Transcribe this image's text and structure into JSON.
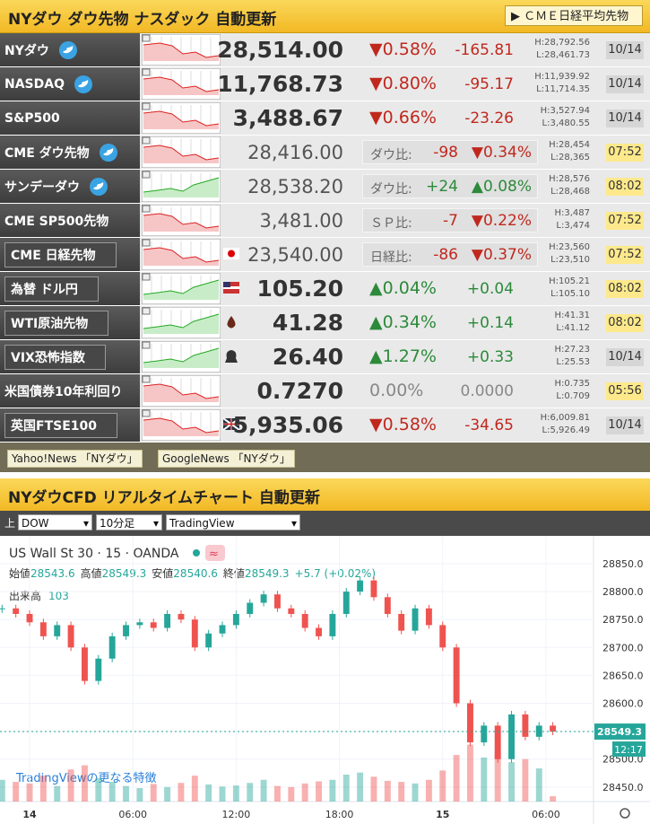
{
  "header": {
    "title": "NYダウ ダウ先物 ナスダック 自動更新",
    "button": "ＣＭＥ日経平均先物"
  },
  "rows": [
    {
      "name": "NYダウ",
      "twitter": true,
      "price": "28,514.00",
      "pct": "▼0.58%",
      "change": "-165.81",
      "high": "H:28,792.56",
      "low": "L:28,461.73",
      "time": "10/14"
    },
    {
      "name": "NASDAQ",
      "twitter": true,
      "price": "11,768.73",
      "pct": "▼0.80%",
      "change": "-95.17",
      "high": "H:11,939.92",
      "low": "L:11,714.35",
      "time": "10/14"
    },
    {
      "name": "S&P500",
      "price": "3,488.67",
      "pct": "▼0.66%",
      "change": "-23.26",
      "high": "H:3,527.94",
      "low": "L:3,480.55",
      "time": "10/14"
    },
    {
      "name": "CME ダウ先物",
      "twitter": true,
      "price": "28,416.00",
      "compare": "ダウ比:",
      "change": "-98",
      "pct": "▼0.34%",
      "high": "H:28,454",
      "low": "L:28,365",
      "time": "07:52"
    },
    {
      "name": "サンデーダウ",
      "twitter": true,
      "price": "28,538.20",
      "compare": "ダウ比:",
      "change": "+24",
      "pct": "▲0.08%",
      "high": "H:28,576",
      "low": "L:28,468",
      "time": "08:02"
    },
    {
      "name": "CME SP500先物",
      "price": "3,481.00",
      "compare": "ＳＰ比:",
      "change": "-7",
      "pct": "▼0.22%",
      "high": "H:3,487",
      "low": "L:3,474",
      "time": "07:52"
    },
    {
      "name": "CME 日経先物",
      "boxed": true,
      "icon": "jp",
      "price": "23,540.00",
      "compare": "日経比:",
      "change": "-86",
      "pct": "▼0.37%",
      "high": "H:23,560",
      "low": "L:23,510",
      "time": "07:52"
    },
    {
      "name": "為替 ドル円",
      "boxed": true,
      "icon": "us",
      "price": "105.20",
      "pct": "▲0.04%",
      "change": "+0.04",
      "high": "H:105.21",
      "low": "L:105.10",
      "time": "08:02"
    },
    {
      "name": "WTI原油先物",
      "boxed": true,
      "icon": "oil",
      "price": "41.28",
      "pct": "▲0.34%",
      "change": "+0.14",
      "high": "H:41.31",
      "low": "L:41.12",
      "time": "08:02"
    },
    {
      "name": "VIX恐怖指数",
      "boxed": true,
      "icon": "vix",
      "price": "26.40",
      "pct": "▲1.27%",
      "change": "+0.33",
      "high": "H:27.23",
      "low": "L:25.53",
      "time": "10/14"
    },
    {
      "name": "米国債券10年利回り",
      "price": "0.7270",
      "pct": "0.00%",
      "change": "0.0000",
      "high": "H:0.735",
      "low": "L:0.709",
      "time": "05:56"
    },
    {
      "name": "英国FTSE100",
      "boxed": true,
      "icon": "uk",
      "price": "5,935.06",
      "pct": "▼0.58%",
      "change": "-34.65",
      "high": "H:6,009.81",
      "low": "L:5,926.49",
      "time": "10/14"
    }
  ],
  "links": [
    "Yahoo!News 「NYダウ」",
    "GoogleNews 「NYダウ」"
  ],
  "chart_header": {
    "title": "NYダウCFD リアルタイムチャート 自動更新"
  },
  "controls": {
    "label": "上",
    "selects": [
      "DOW",
      "10分足",
      "TradingView"
    ]
  },
  "chart_data": {
    "type": "candlestick",
    "title": "US Wall St 30 · 15 · OANDA",
    "ohlc": [
      {
        "label": "始値",
        "value": "28543.6"
      },
      {
        "label": "高値",
        "value": "28549.3"
      },
      {
        "label": "安値",
        "value": "28540.6"
      },
      {
        "label": "終値",
        "value": "28549.3"
      }
    ],
    "change": "+5.7 (+0.02%)",
    "volume_label": "出来高",
    "countdown": "12:17",
    "promo": "TradingViewの更なる特徴",
    "x": [
      -1.6,
      -0.8,
      0,
      0.8,
      1.6,
      2.4,
      3.2,
      4,
      4.8,
      5.6,
      6.4,
      7.2,
      8,
      8.8,
      9.6,
      10.4,
      11.2,
      12,
      12.8,
      13.6,
      14.4,
      15.2,
      16,
      16.8,
      17.6,
      18.4,
      19.2,
      20,
      20.8,
      21.6,
      22.4,
      23.2,
      24,
      24.8,
      25.6,
      26.4,
      27.2,
      28,
      28.8,
      29.6,
      30.4
    ],
    "closes": [
      28770,
      28760,
      28745,
      28720,
      28740,
      28700,
      28640,
      28680,
      28720,
      28740,
      28745,
      28735,
      28760,
      28750,
      28700,
      28725,
      28740,
      28760,
      28780,
      28795,
      28770,
      28760,
      28735,
      28720,
      28760,
      28800,
      28820,
      28790,
      28760,
      28730,
      28770,
      28740,
      28700,
      28600,
      28530,
      28560,
      28500,
      28580,
      28540,
      28560,
      28549.3
    ],
    "volumes": [
      420,
      380,
      350,
      500,
      300,
      620,
      700,
      450,
      380,
      300,
      260,
      340,
      280,
      360,
      500,
      330,
      290,
      310,
      360,
      420,
      300,
      280,
      350,
      390,
      420,
      520,
      560,
      480,
      400,
      380,
      350,
      420,
      600,
      900,
      1100,
      850,
      980,
      760,
      820,
      640,
      103
    ],
    "up_color": "#26a69a",
    "down_color": "#ef5350",
    "xlim": [
      -1.72,
      32.66
    ],
    "xticks": [
      {
        "value": 0,
        "label": "14"
      },
      {
        "value": 6,
        "label": "06:00"
      },
      {
        "value": 12,
        "label": "12:00"
      },
      {
        "value": 18,
        "label": "18:00"
      },
      {
        "value": 24,
        "label": "15"
      },
      {
        "value": 30,
        "label": "06:00"
      }
    ],
    "ylim": [
      28424,
      28895
    ],
    "yticks": [
      {
        "value": 28450,
        "label": "28450.0"
      },
      {
        "value": 28500,
        "label": "28500.0"
      },
      {
        "value": 28550,
        "label": "28550.0"
      },
      {
        "value": 28600,
        "label": "28600.0"
      },
      {
        "value": 28650,
        "label": "28650.0"
      },
      {
        "value": 28700,
        "label": "28700.0"
      },
      {
        "value": 28750,
        "label": "28750.0"
      },
      {
        "value": 28800,
        "label": "28800.0"
      },
      {
        "value": 28850,
        "label": "28850.0"
      }
    ],
    "vlim": [
      0,
      1300
    ]
  }
}
